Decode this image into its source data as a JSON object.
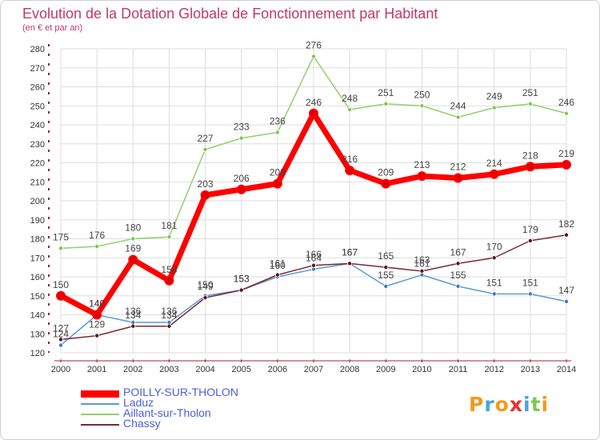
{
  "header": {
    "title": "Evolution de la Dotation Globale de Fonctionnement par Habitant",
    "subtitle": "(en € et par an)"
  },
  "colors": {
    "title": "#c0396b",
    "axis": "#a0203c",
    "grid": "#dddddd",
    "text": "#333333"
  },
  "chart_data": {
    "type": "line",
    "title": "Evolution de la Dotation Globale de Fonctionnement par Habitant",
    "subtitle": "(en € et par an)",
    "categories": [
      "2000",
      "2001",
      "2002",
      "2003",
      "2004",
      "2005",
      "2006",
      "2007",
      "2008",
      "2009",
      "2010",
      "2011",
      "2012",
      "2013",
      "2014"
    ],
    "ylim": [
      120,
      280
    ],
    "yticks": [
      120,
      130,
      140,
      150,
      160,
      170,
      180,
      190,
      200,
      210,
      220,
      230,
      240,
      250,
      260,
      270,
      280
    ],
    "grid": true,
    "legend_position": "bottom-left",
    "series": [
      {
        "name": "Aillant-sur-Tholon",
        "color": "#8fd16c",
        "marker": "#7ec850",
        "width": 1.5,
        "values": [
          175,
          176,
          180,
          181,
          227,
          233,
          236,
          276,
          248,
          251,
          250,
          244,
          249,
          251,
          246
        ]
      },
      {
        "name": "Laduz",
        "color": "#5b9bd5",
        "marker": "#3a7dc0",
        "width": 1.5,
        "values": [
          124,
          140,
          136,
          136,
          150,
          153,
          160,
          164,
          167,
          155,
          161,
          155,
          151,
          151,
          147
        ]
      },
      {
        "name": "Chassy",
        "color": "#7b2a35",
        "marker": "#5a1520",
        "width": 1.5,
        "values": [
          127,
          129,
          134,
          134,
          149,
          153,
          161,
          166,
          167,
          165,
          163,
          167,
          170,
          179,
          182
        ]
      },
      {
        "name": "POILLY-SUR-THOLON",
        "color": "#ff0000",
        "marker": "#e00000",
        "width": 7,
        "values": [
          150,
          140,
          169,
          158,
          203,
          206,
          209,
          246,
          216,
          209,
          213,
          212,
          214,
          218,
          219
        ]
      }
    ],
    "data_labels": {
      "POILLY-SUR-THOLON": [
        "150",
        "140",
        "169",
        "158",
        "203",
        "206",
        "209",
        "246",
        "216",
        "209",
        "213",
        "212",
        "214",
        "218",
        "219"
      ],
      "Laduz": [
        "124",
        "140",
        "136",
        "136",
        "150",
        "153",
        "160",
        "164",
        "167",
        "155",
        "161",
        "155",
        "151",
        "151",
        "147"
      ],
      "Aillant-sur-Tholon": [
        "175",
        "176",
        "180",
        "181",
        "227",
        "233",
        "236",
        "276",
        "248",
        "251",
        "250",
        "244",
        "249",
        "251",
        "246"
      ],
      "Chassy": [
        "127",
        "129",
        "134",
        "134",
        "149",
        "153",
        "161",
        "166",
        "167",
        "165",
        "163",
        "167",
        "170",
        "179",
        "182"
      ]
    }
  },
  "legend": {
    "items": [
      {
        "label": "POILLY-SUR-THOLON",
        "color": "#ff0000",
        "thickness": "thick"
      },
      {
        "label": "Laduz",
        "color": "#5b9bd5",
        "thickness": "thin"
      },
      {
        "label": "Aillant-sur-Tholon",
        "color": "#8fd16c",
        "thickness": "thin"
      },
      {
        "label": "Chassy",
        "color": "#7b2a35",
        "thickness": "thin"
      }
    ]
  },
  "logo": {
    "letters": [
      "P",
      "r",
      "o",
      "x",
      "i",
      "t",
      "i"
    ],
    "colors": [
      "#f29a1e",
      "#4aa3df",
      "#f29a1e",
      "#e83030",
      "#4aa3df",
      "#7ec850",
      "#f29a1e"
    ]
  }
}
